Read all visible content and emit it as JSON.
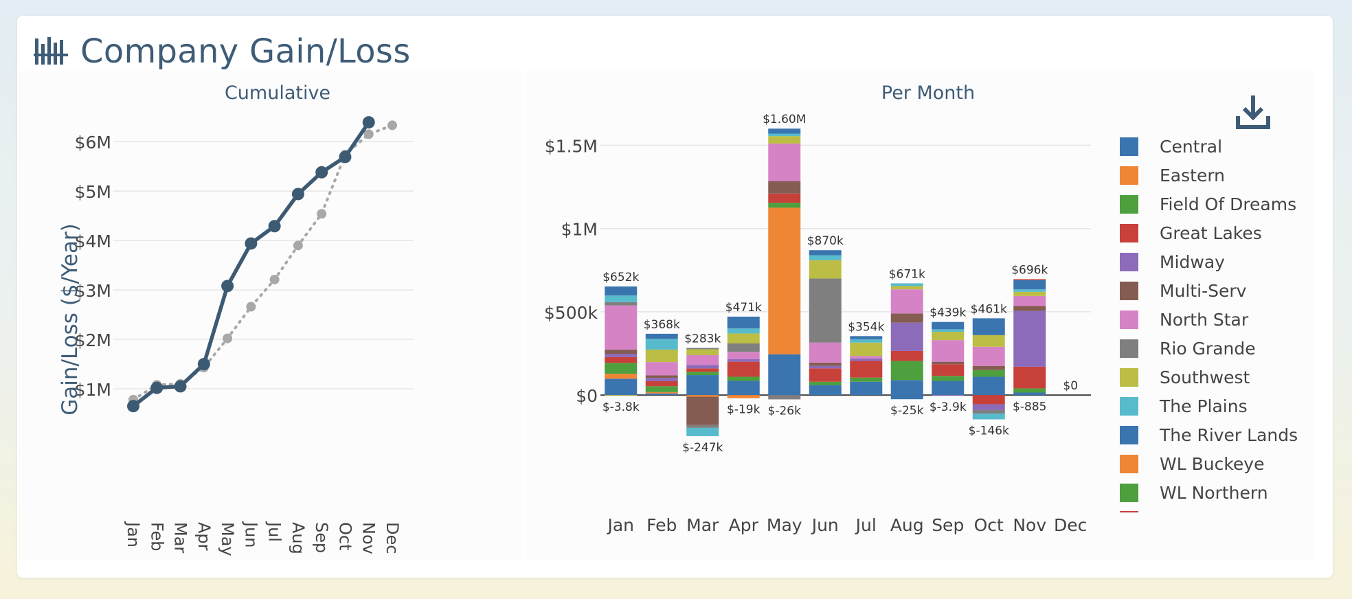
{
  "header": {
    "title": "Company Gain/Loss",
    "icon": "bar-chart-icon"
  },
  "download": {
    "icon": "download-icon"
  },
  "colors": {
    "title": "#3e5c77",
    "line_main": "#3d5a73",
    "line_secondary": "#a8a8a8"
  },
  "chart_data": [
    {
      "type": "line",
      "title": "Cumulative",
      "ylabel": "Gain/Loss ($/Year)",
      "xlabel": "",
      "x": [
        "Jan",
        "Feb",
        "Mar",
        "Apr",
        "May",
        "Jun",
        "Jul",
        "Aug",
        "Sep",
        "Oct",
        "Nov",
        "Dec"
      ],
      "ylim": [
        0,
        6600000
      ],
      "yticks": [
        1000000,
        2000000,
        3000000,
        4000000,
        5000000,
        6000000
      ],
      "ytick_labels": [
        "$1M",
        "$2M",
        "$3M",
        "$4M",
        "$5M",
        "$6M"
      ],
      "grid": true,
      "series": [
        {
          "style": "solid",
          "color": "#3d5a73",
          "values": [
            650000,
            1020000,
            1050000,
            1500000,
            3080000,
            3940000,
            4290000,
            4940000,
            5380000,
            5690000,
            6390000,
            null
          ]
        },
        {
          "style": "dotted",
          "color": "#a8a8a8",
          "values": [
            780000,
            1080000,
            1100000,
            1430000,
            2020000,
            2660000,
            3210000,
            3900000,
            4540000,
            5740000,
            6150000,
            6330000
          ]
        }
      ]
    },
    {
      "type": "bar",
      "stacked": true,
      "title": "Per Month",
      "xlabel": "",
      "ylabel": "",
      "categories": [
        "Jan",
        "Feb",
        "Mar",
        "Apr",
        "May",
        "Jun",
        "Jul",
        "Aug",
        "Sep",
        "Oct",
        "Nov",
        "Dec"
      ],
      "ylim": [
        -280000,
        1700000
      ],
      "yticks": [
        0,
        500000,
        1000000,
        1500000
      ],
      "ytick_labels": [
        "$0",
        "$500k",
        "$1M",
        "$1.5M"
      ],
      "grid": true,
      "legend_position": "right",
      "legend": [
        {
          "name": "Central",
          "color": "#3a75b0"
        },
        {
          "name": "Eastern",
          "color": "#ef8636"
        },
        {
          "name": "Field Of Dreams",
          "color": "#4e9f3d"
        },
        {
          "name": "Great Lakes",
          "color": "#c8403a"
        },
        {
          "name": "Midway",
          "color": "#8c6bba"
        },
        {
          "name": "Multi-Serv",
          "color": "#855c52"
        },
        {
          "name": "North Star",
          "color": "#d683c6"
        },
        {
          "name": "Rio Grande",
          "color": "#7f7f7f"
        },
        {
          "name": "Southwest",
          "color": "#bcbd45"
        },
        {
          "name": "The Plains",
          "color": "#58bbcc"
        },
        {
          "name": "The River Lands",
          "color": "#3a75b0"
        },
        {
          "name": "WL Buckeye",
          "color": "#ef8636"
        },
        {
          "name": "WL Northern",
          "color": "#4e9f3d"
        }
      ],
      "totals_positive": [
        "$652k",
        "$368k",
        "$283k",
        "$471k",
        "$1.60M",
        "$870k",
        "$354k",
        "$671k",
        "$439k",
        "$461k",
        "$696k",
        "$0"
      ],
      "totals_negative": [
        "$-3.8k",
        "",
        "$-247k",
        "$-19k",
        "$-26k",
        "",
        "",
        "$-25k",
        "$-3.9k",
        "$-146k",
        "$-885",
        ""
      ],
      "stacks": [
        {
          "pos": [
            [
              "#3a75b0",
              98000
            ],
            [
              "#ef8636",
              30000
            ],
            [
              "#4e9f3d",
              65000
            ],
            [
              "#c8403a",
              35000
            ],
            [
              "#8c6bba",
              20000
            ],
            [
              "#855c52",
              25000
            ],
            [
              "#d683c6",
              265000
            ],
            [
              "#7f7f7f",
              20000
            ],
            [
              "#58bbcc",
              40000
            ],
            [
              "#3a75b0",
              54000
            ]
          ],
          "neg": [
            [
              "#bcbd45",
              3800
            ]
          ]
        },
        {
          "pos": [
            [
              "#3a75b0",
              10000
            ],
            [
              "#ef8636",
              8000
            ],
            [
              "#4e9f3d",
              35000
            ],
            [
              "#c8403a",
              30000
            ],
            [
              "#8c6bba",
              20000
            ],
            [
              "#855c52",
              15000
            ],
            [
              "#d683c6",
              80000
            ],
            [
              "#bcbd45",
              75000
            ],
            [
              "#58bbcc",
              65000
            ],
            [
              "#3a75b0",
              30000
            ]
          ],
          "neg": []
        },
        {
          "pos": [
            [
              "#3a75b0",
              120000
            ],
            [
              "#4e9f3d",
              20000
            ],
            [
              "#c8403a",
              20000
            ],
            [
              "#8c6bba",
              20000
            ],
            [
              "#d683c6",
              60000
            ],
            [
              "#bcbd45",
              35000
            ],
            [
              "#7f7f7f",
              8000
            ]
          ],
          "neg": [
            [
              "#ef8636",
              10000
            ],
            [
              "#855c52",
              170000
            ],
            [
              "#7f7f7f",
              17000
            ],
            [
              "#58bbcc",
              50000
            ]
          ]
        },
        {
          "pos": [
            [
              "#3a75b0",
              85000
            ],
            [
              "#4e9f3d",
              25000
            ],
            [
              "#c8403a",
              90000
            ],
            [
              "#8c6bba",
              15000
            ],
            [
              "#d683c6",
              45000
            ],
            [
              "#7f7f7f",
              50000
            ],
            [
              "#bcbd45",
              60000
            ],
            [
              "#58bbcc",
              30000
            ],
            [
              "#3a75b0",
              71000
            ]
          ],
          "neg": [
            [
              "#ef8636",
              19000
            ]
          ]
        },
        {
          "pos": [
            [
              "#3a75b0",
              245000
            ],
            [
              "#ef8636",
              880000
            ],
            [
              "#4e9f3d",
              30000
            ],
            [
              "#c8403a",
              55000
            ],
            [
              "#855c52",
              75000
            ],
            [
              "#d683c6",
              225000
            ],
            [
              "#bcbd45",
              45000
            ],
            [
              "#58bbcc",
              15000
            ],
            [
              "#3a75b0",
              30000
            ]
          ],
          "neg": [
            [
              "#7f7f7f",
              26000
            ]
          ]
        },
        {
          "pos": [
            [
              "#3a75b0",
              60000
            ],
            [
              "#4e9f3d",
              20000
            ],
            [
              "#c8403a",
              80000
            ],
            [
              "#8c6bba",
              15000
            ],
            [
              "#855c52",
              20000
            ],
            [
              "#d683c6",
              120000
            ],
            [
              "#7f7f7f",
              385000
            ],
            [
              "#bcbd45",
              110000
            ],
            [
              "#58bbcc",
              30000
            ],
            [
              "#3a75b0",
              30000
            ]
          ],
          "neg": []
        },
        {
          "pos": [
            [
              "#3a75b0",
              80000
            ],
            [
              "#4e9f3d",
              25000
            ],
            [
              "#c8403a",
              100000
            ],
            [
              "#8c6bba",
              15000
            ],
            [
              "#d683c6",
              15000
            ],
            [
              "#bcbd45",
              80000
            ],
            [
              "#58bbcc",
              20000
            ],
            [
              "#3a75b0",
              19000
            ]
          ],
          "neg": []
        },
        {
          "pos": [
            [
              "#3a75b0",
              90000
            ],
            [
              "#4e9f3d",
              115000
            ],
            [
              "#c8403a",
              60000
            ],
            [
              "#8c6bba",
              170000
            ],
            [
              "#855c52",
              55000
            ],
            [
              "#d683c6",
              145000
            ],
            [
              "#bcbd45",
              20000
            ],
            [
              "#58bbcc",
              16000
            ]
          ],
          "neg": [
            [
              "#3a75b0",
              25000
            ]
          ]
        },
        {
          "pos": [
            [
              "#3a75b0",
              85000
            ],
            [
              "#4e9f3d",
              30000
            ],
            [
              "#c8403a",
              70000
            ],
            [
              "#855c52",
              15000
            ],
            [
              "#d683c6",
              130000
            ],
            [
              "#bcbd45",
              50000
            ],
            [
              "#58bbcc",
              15000
            ],
            [
              "#3a75b0",
              44000
            ]
          ],
          "neg": [
            [
              "#8c6bba",
              3900
            ]
          ]
        },
        {
          "pos": [
            [
              "#3a75b0",
              110000
            ],
            [
              "#4e9f3d",
              40000
            ],
            [
              "#855c52",
              25000
            ],
            [
              "#d683c6",
              115000
            ],
            [
              "#bcbd45",
              70000
            ],
            [
              "#3a75b0",
              101000
            ]
          ],
          "neg": [
            [
              "#c8403a",
              55000
            ],
            [
              "#8c6bba",
              35000
            ],
            [
              "#7f7f7f",
              21000
            ],
            [
              "#58bbcc",
              35000
            ]
          ]
        },
        {
          "pos": [
            [
              "#3a75b0",
              15000
            ],
            [
              "#4e9f3d",
              25000
            ],
            [
              "#c8403a",
              130000
            ],
            [
              "#8c6bba",
              335000
            ],
            [
              "#855c52",
              30000
            ],
            [
              "#d683c6",
              60000
            ],
            [
              "#bcbd45",
              25000
            ],
            [
              "#58bbcc",
              15000
            ],
            [
              "#3a75b0",
              55000
            ],
            [
              "#c8403a",
              6000
            ]
          ],
          "neg": [
            [
              "#3a75b0",
              885
            ]
          ]
        },
        {
          "pos": [],
          "neg": []
        }
      ]
    }
  ]
}
